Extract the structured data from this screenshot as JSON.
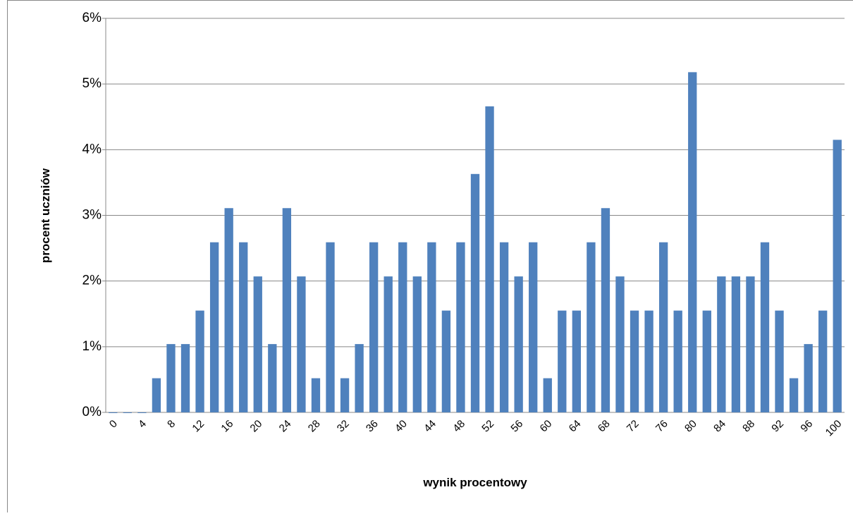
{
  "chart_data": {
    "type": "bar",
    "x_label": "wynik procentowy",
    "y_label": "procent uczniów",
    "categories": [
      "0",
      null,
      "4",
      null,
      "8",
      null,
      "12",
      null,
      "16",
      null,
      "20",
      null,
      "24",
      null,
      "28",
      null,
      "32",
      null,
      "36",
      null,
      "40",
      null,
      "44",
      null,
      "48",
      null,
      "52",
      null,
      "56",
      null,
      "60",
      null,
      "64",
      null,
      "68",
      null,
      "72",
      null,
      "76",
      null,
      "80",
      null,
      "84",
      null,
      "88",
      null,
      "92",
      null,
      "96",
      null,
      "100"
    ],
    "values": [
      0,
      0,
      0,
      0.52,
      1.04,
      1.04,
      1.55,
      2.59,
      3.11,
      2.59,
      2.07,
      1.04,
      3.11,
      2.07,
      0.52,
      2.59,
      0.52,
      1.04,
      2.59,
      2.07,
      2.59,
      2.07,
      2.59,
      1.55,
      2.59,
      3.63,
      4.66,
      2.59,
      2.07,
      2.59,
      0.52,
      1.55,
      1.55,
      2.59,
      3.11,
      2.07,
      1.55,
      1.55,
      2.59,
      1.55,
      5.18,
      1.55,
      2.07,
      2.07,
      2.07,
      2.59,
      1.55,
      0.52,
      1.04,
      1.55,
      4.15
    ],
    "color": "#4f81bd",
    "ylim": [
      0,
      6
    ],
    "yticks": [
      {
        "value": 0,
        "label": "0%"
      },
      {
        "value": 1,
        "label": "1%"
      },
      {
        "value": 2,
        "label": "2%"
      },
      {
        "value": 3,
        "label": "3%"
      },
      {
        "value": 4,
        "label": "4%"
      },
      {
        "value": 5,
        "label": "5%"
      },
      {
        "value": 6,
        "label": "6%"
      }
    ],
    "grid": true
  }
}
